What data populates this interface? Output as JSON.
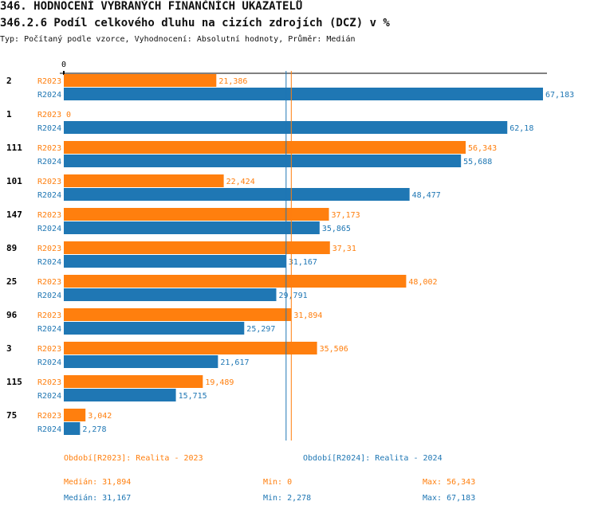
{
  "header": {
    "title": "346. HODNOCENÍ VYBRANÝCH FINANČNÍCH UKAZATELŮ",
    "subtitle": "346.2.6 Podíl celkového dluhu na cizích zdrojích (DCZ) v %",
    "info": "Typ: Počítaný podle vzorce, Vyhodnocení: Absolutní hodnoty, Průměr: Medián"
  },
  "chart_data": {
    "type": "bar",
    "orientation": "horizontal",
    "axis_zero_label": "0",
    "categories": [
      "2",
      "1",
      "111",
      "101",
      "147",
      "89",
      "25",
      "96",
      "3",
      "115",
      "75"
    ],
    "series": [
      {
        "name": "R2023",
        "color": "#ff7f0e",
        "values": [
          21.386,
          0,
          56.343,
          22.424,
          37.173,
          37.31,
          48.002,
          31.894,
          35.506,
          19.489,
          3.042
        ],
        "labels": [
          "21,386",
          "0",
          "56,343",
          "22,424",
          "37,173",
          "37,31",
          "48,002",
          "31,894",
          "35,506",
          "19,489",
          "3,042"
        ]
      },
      {
        "name": "R2024",
        "color": "#1f77b4",
        "values": [
          67.183,
          62.18,
          55.688,
          48.477,
          35.865,
          31.167,
          29.791,
          25.297,
          21.617,
          15.715,
          2.278
        ],
        "labels": [
          "67,183",
          "62,18",
          "55,688",
          "48,477",
          "35,865",
          "31,167",
          "29,791",
          "25,297",
          "21,617",
          "15,715",
          "2,278"
        ]
      }
    ],
    "median_lines": [
      {
        "series": "R2023",
        "value": 31.894
      },
      {
        "series": "R2024",
        "value": 31.167
      }
    ],
    "xlim": [
      0,
      67.183
    ]
  },
  "footer": {
    "legend_2023": "Období[R2023]: Realita - 2023",
    "legend_2024": "Období[R2024]: Realita - 2024",
    "median_2023": "Medián: 31,894",
    "min_2023": "Min: 0",
    "max_2023": "Max: 56,343",
    "median_2024": "Medián: 31,167",
    "min_2024": "Min: 2,278",
    "max_2024": "Max: 67,183"
  }
}
